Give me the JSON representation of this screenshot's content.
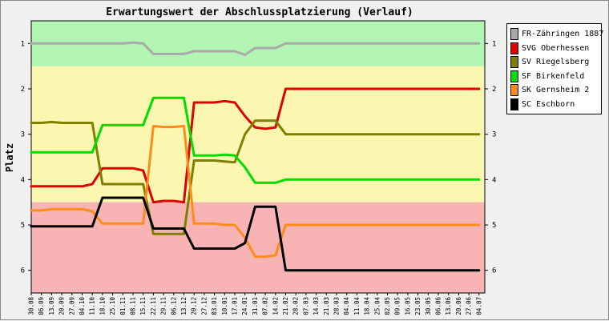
{
  "chart_data": {
    "type": "line",
    "title": "Erwartungswert der Abschlussplatzierung (Verlauf)",
    "ylabel": "Platz",
    "xlabel": "",
    "ylim": [
      0.5,
      6.5
    ],
    "y_reversed": true,
    "y_ticks": [
      1,
      2,
      3,
      4,
      5,
      6
    ],
    "bands": [
      {
        "from": 0.5,
        "to": 1.5,
        "color": "#b3f5b3"
      },
      {
        "from": 1.5,
        "to": 4.5,
        "color": "#fbf7b1"
      },
      {
        "from": 4.5,
        "to": 6.5,
        "color": "#f8b4b4"
      }
    ],
    "categories": [
      "30.08",
      "06.09",
      "13.09",
      "20.09",
      "27.09",
      "04.10",
      "11.10",
      "18.10",
      "25.10",
      "01.11",
      "08.11",
      "15.11",
      "22.11",
      "29.11",
      "06.12",
      "13.12",
      "20.12",
      "27.12",
      "03.01",
      "10.01",
      "17.01",
      "24.01",
      "31.01",
      "07.02",
      "14.02",
      "21.02",
      "28.02",
      "07.03",
      "14.03",
      "21.03",
      "28.03",
      "04.04",
      "11.04",
      "18.04",
      "25.04",
      "02.05",
      "09.05",
      "16.05",
      "23.05",
      "30.05",
      "06.06",
      "13.06",
      "20.06",
      "27.06",
      "04.07"
    ],
    "series": [
      {
        "name": "FR-Zähringen 1887",
        "color": "#aaaaaa",
        "values": [
          1.0,
          1.0,
          1.0,
          1.0,
          1.0,
          1.0,
          1.0,
          1.0,
          1.0,
          1.0,
          0.98,
          1.0,
          1.23,
          1.23,
          1.23,
          1.23,
          1.17,
          1.17,
          1.17,
          1.17,
          1.17,
          1.25,
          1.1,
          1.1,
          1.1,
          1.0,
          1.0,
          1.0,
          1.0,
          1.0,
          1.0,
          1.0,
          1.0,
          1.0,
          1.0,
          1.0,
          1.0,
          1.0,
          1.0,
          1.0,
          1.0,
          1.0,
          1.0,
          1.0,
          1.0
        ]
      },
      {
        "name": "SVG Oberhessen",
        "color": "#e00000",
        "values": [
          4.15,
          4.15,
          4.15,
          4.15,
          4.15,
          4.15,
          4.1,
          3.75,
          3.75,
          3.75,
          3.75,
          3.8,
          4.5,
          4.47,
          4.47,
          4.5,
          2.3,
          2.3,
          2.3,
          2.27,
          2.3,
          2.6,
          2.85,
          2.88,
          2.85,
          2.0,
          2.0,
          2.0,
          2.0,
          2.0,
          2.0,
          2.0,
          2.0,
          2.0,
          2.0,
          2.0,
          2.0,
          2.0,
          2.0,
          2.0,
          2.0,
          2.0,
          2.0,
          2.0,
          2.0
        ]
      },
      {
        "name": "SV Riegelsberg",
        "color": "#808000",
        "values": [
          2.75,
          2.75,
          2.73,
          2.75,
          2.75,
          2.75,
          2.75,
          4.1,
          4.1,
          4.1,
          4.1,
          4.1,
          5.2,
          5.2,
          5.2,
          5.2,
          3.58,
          3.58,
          3.58,
          3.6,
          3.62,
          3.0,
          2.7,
          2.7,
          2.7,
          3.0,
          3.0,
          3.0,
          3.0,
          3.0,
          3.0,
          3.0,
          3.0,
          3.0,
          3.0,
          3.0,
          3.0,
          3.0,
          3.0,
          3.0,
          3.0,
          3.0,
          3.0,
          3.0,
          3.0
        ]
      },
      {
        "name": "SF Birkenfeld",
        "color": "#00dd00",
        "values": [
          3.4,
          3.4,
          3.4,
          3.4,
          3.4,
          3.4,
          3.4,
          2.8,
          2.8,
          2.8,
          2.8,
          2.8,
          2.2,
          2.2,
          2.2,
          2.2,
          3.47,
          3.47,
          3.47,
          3.45,
          3.47,
          3.73,
          4.07,
          4.07,
          4.07,
          4.0,
          4.0,
          4.0,
          4.0,
          4.0,
          4.0,
          4.0,
          4.0,
          4.0,
          4.0,
          4.0,
          4.0,
          4.0,
          4.0,
          4.0,
          4.0,
          4.0,
          4.0,
          4.0,
          4.0
        ]
      },
      {
        "name": "SK Gernsheim 2",
        "color": "#ff8c1a",
        "values": [
          4.68,
          4.68,
          4.65,
          4.65,
          4.65,
          4.65,
          4.7,
          4.97,
          4.97,
          4.97,
          4.97,
          4.97,
          2.82,
          2.84,
          2.84,
          2.82,
          4.97,
          4.97,
          4.97,
          5.0,
          5.0,
          5.28,
          5.7,
          5.7,
          5.67,
          5.0,
          5.0,
          5.0,
          5.0,
          5.0,
          5.0,
          5.0,
          5.0,
          5.0,
          5.0,
          5.0,
          5.0,
          5.0,
          5.0,
          5.0,
          5.0,
          5.0,
          5.0,
          5.0,
          5.0
        ]
      },
      {
        "name": "SC Eschborn",
        "color": "#000000",
        "values": [
          5.03,
          5.03,
          5.03,
          5.03,
          5.03,
          5.03,
          5.03,
          4.4,
          4.4,
          4.4,
          4.4,
          4.4,
          5.08,
          5.08,
          5.08,
          5.08,
          5.52,
          5.52,
          5.52,
          5.52,
          5.52,
          5.4,
          4.6,
          4.6,
          4.6,
          6.0,
          6.0,
          6.0,
          6.0,
          6.0,
          6.0,
          6.0,
          6.0,
          6.0,
          6.0,
          6.0,
          6.0,
          6.0,
          6.0,
          6.0,
          6.0,
          6.0,
          6.0,
          6.0,
          6.0
        ]
      }
    ]
  }
}
